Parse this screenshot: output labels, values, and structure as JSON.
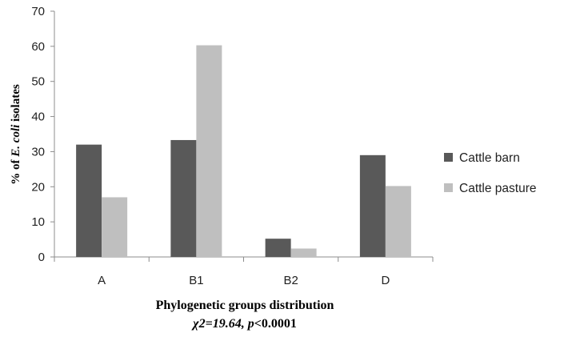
{
  "chart_data": {
    "type": "bar",
    "categories": [
      "A",
      "B1",
      "B2",
      "D"
    ],
    "series": [
      {
        "name": "Cattle barn",
        "values": [
          32,
          33.3,
          5.2,
          29
        ],
        "color": "#595959"
      },
      {
        "name": "Cattle pasture",
        "values": [
          17,
          60.3,
          2.4,
          20.2
        ],
        "color": "#bfbfbf"
      }
    ],
    "ylim": [
      0,
      70
    ],
    "yticks": [
      "0",
      "10",
      "20",
      "30",
      "40",
      "50",
      "60",
      "70"
    ],
    "ylabel": {
      "prefix": "% of ",
      "italic": "E. coli",
      "suffix": " isolates"
    },
    "xlabel": {
      "line1": "Phylogenetic groups distribution",
      "chi": "χ2=19.64, ",
      "p": "p",
      "p_value": "<0.0001"
    },
    "grid": false,
    "legend_position": "right"
  }
}
